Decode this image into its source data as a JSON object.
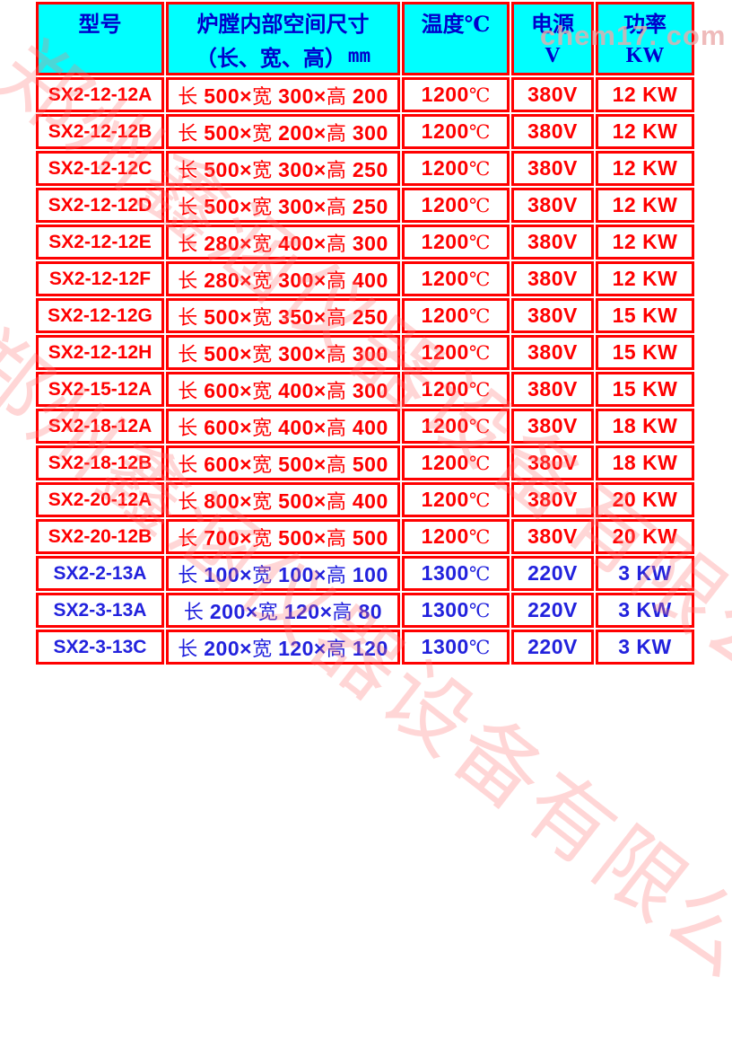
{
  "colors": {
    "header-cyan": "#00ffff",
    "border-red": "#ff0000",
    "text-red": "#ff0000",
    "header-blue": "#0000cc",
    "data-blue": "#2222dd"
  },
  "watermarks": {
    "site": "chem17. com",
    "company": "郑州鑫涵仪器设备有限公司"
  },
  "table": {
    "headers": {
      "model": {
        "line1": "型号",
        "line2": ""
      },
      "size": {
        "line1": "炉膛内部空间尺寸",
        "line2_cjk": "（长、宽、高）",
        "line2_unit": "mm"
      },
      "temp": {
        "line1": "温度℃",
        "line2": ""
      },
      "volt": {
        "line1": "电源",
        "line2": "V"
      },
      "power": {
        "line1": "功率",
        "line2": "KW"
      }
    },
    "rows": [
      {
        "model": "SX2-12-12A",
        "dims": [
          [
            "长 ",
            "500×"
          ],
          [
            "宽 ",
            "300×"
          ],
          [
            "高 ",
            "200"
          ]
        ],
        "temp": "1200",
        "unit": "℃",
        "volt": "380V",
        "power": "12 KW",
        "theme": "red"
      },
      {
        "model": "SX2-12-12B",
        "dims": [
          [
            "长 ",
            "500×"
          ],
          [
            "宽 ",
            "200×"
          ],
          [
            "高 ",
            "300"
          ]
        ],
        "temp": "1200",
        "unit": "℃",
        "volt": "380V",
        "power": "12 KW",
        "theme": "red"
      },
      {
        "model": "SX2-12-12C",
        "dims": [
          [
            "长 ",
            "500×"
          ],
          [
            "宽 ",
            "300×"
          ],
          [
            "高 ",
            "250"
          ]
        ],
        "temp": "1200",
        "unit": "℃",
        "volt": "380V",
        "power": "12 KW",
        "theme": "red"
      },
      {
        "model": "SX2-12-12D",
        "dims": [
          [
            "长 ",
            "500×"
          ],
          [
            "宽 ",
            "300×"
          ],
          [
            "高 ",
            "250"
          ]
        ],
        "temp": "1200",
        "unit": "℃",
        "volt": "380V",
        "power": "12 KW",
        "theme": "red"
      },
      {
        "model": "SX2-12-12E",
        "dims": [
          [
            "长 ",
            "280×"
          ],
          [
            "宽 ",
            "400×"
          ],
          [
            "高 ",
            "300"
          ]
        ],
        "temp": "1200",
        "unit": "℃",
        "volt": "380V",
        "power": "12 KW",
        "theme": "red"
      },
      {
        "model": "SX2-12-12F",
        "dims": [
          [
            "长 ",
            "280×"
          ],
          [
            "宽 ",
            "300×"
          ],
          [
            "高 ",
            "400"
          ]
        ],
        "temp": "1200",
        "unit": "℃",
        "volt": "380V",
        "power": "12 KW",
        "theme": "red"
      },
      {
        "model": "SX2-12-12G",
        "dims": [
          [
            "长 ",
            "500×"
          ],
          [
            "宽 ",
            "350×"
          ],
          [
            "高 ",
            "250"
          ]
        ],
        "temp": "1200",
        "unit": "℃",
        "volt": "380V",
        "power": "15 KW",
        "theme": "red"
      },
      {
        "model": "SX2-12-12H",
        "dims": [
          [
            "长 ",
            "500×"
          ],
          [
            "宽 ",
            "300×"
          ],
          [
            "高 ",
            "300"
          ]
        ],
        "temp": "1200",
        "unit": "℃",
        "volt": "380V",
        "power": "15 KW",
        "theme": "red"
      },
      {
        "model": "SX2-15-12A",
        "dims": [
          [
            "长 ",
            "600×"
          ],
          [
            "宽 ",
            "400×"
          ],
          [
            "高 ",
            "300"
          ]
        ],
        "temp": "1200",
        "unit": "℃",
        "volt": "380V",
        "power": "15 KW",
        "theme": "red"
      },
      {
        "model": "SX2-18-12A",
        "dims": [
          [
            "长 ",
            "600×"
          ],
          [
            "宽 ",
            "400×"
          ],
          [
            "高 ",
            "400"
          ]
        ],
        "temp": "1200",
        "unit": "℃",
        "volt": "380V",
        "power": "18 KW",
        "theme": "red"
      },
      {
        "model": "SX2-18-12B",
        "dims": [
          [
            "长 ",
            "600×"
          ],
          [
            "宽 ",
            "500×"
          ],
          [
            "高 ",
            "500"
          ]
        ],
        "temp": "1200",
        "unit": "℃",
        "volt": "380V",
        "power": "18 KW",
        "theme": "red"
      },
      {
        "model": "SX2-20-12A",
        "dims": [
          [
            "长 ",
            "800×"
          ],
          [
            "宽 ",
            "500×"
          ],
          [
            "高 ",
            "400"
          ]
        ],
        "temp": "1200",
        "unit": "℃",
        "volt": "380V",
        "power": "20 KW",
        "theme": "red"
      },
      {
        "model": "SX2-20-12B",
        "dims": [
          [
            "长 ",
            "700×"
          ],
          [
            "宽 ",
            "500×"
          ],
          [
            "高 ",
            "500"
          ]
        ],
        "temp": "1200",
        "unit": "℃",
        "volt": "380V",
        "power": "20 KW",
        "theme": "red"
      },
      {
        "model": "SX2-2-13A",
        "dims": [
          [
            "长 ",
            "100×"
          ],
          [
            "宽 ",
            "100×"
          ],
          [
            "高 ",
            "100"
          ]
        ],
        "temp": "1300",
        "unit": "℃",
        "volt": "220V",
        "power": "3 KW",
        "theme": "blue"
      },
      {
        "model": "SX2-3-13A",
        "dims": [
          [
            "长 ",
            "200×"
          ],
          [
            "宽 ",
            "120×"
          ],
          [
            "高 ",
            "80"
          ]
        ],
        "temp": "1300",
        "unit": "℃",
        "volt": "220V",
        "power": "3 KW",
        "theme": "blue"
      },
      {
        "model": "SX2-3-13C",
        "dims": [
          [
            "长 ",
            "200×"
          ],
          [
            "宽 ",
            "120×"
          ],
          [
            "高 ",
            "120"
          ]
        ],
        "temp": "1300",
        "unit": "℃",
        "volt": "220V",
        "power": "3 KW",
        "theme": "blue"
      }
    ]
  },
  "chart_data": {
    "type": "table",
    "columns": [
      "型号",
      "炉膛内部空间尺寸（长、宽、高）mm",
      "温度℃",
      "电源V",
      "功率KW"
    ],
    "rows": [
      [
        "SX2-12-12A",
        "长 500×宽 300×高 200",
        "1200℃",
        "380V",
        "12 KW"
      ],
      [
        "SX2-12-12B",
        "长 500×宽 200×高 300",
        "1200℃",
        "380V",
        "12 KW"
      ],
      [
        "SX2-12-12C",
        "长 500×宽 300×高 250",
        "1200℃",
        "380V",
        "12 KW"
      ],
      [
        "SX2-12-12D",
        "长 500×宽 300×高 250",
        "1200℃",
        "380V",
        "12 KW"
      ],
      [
        "SX2-12-12E",
        "长 280×宽 400×高 300",
        "1200℃",
        "380V",
        "12 KW"
      ],
      [
        "SX2-12-12F",
        "长 280×宽 300×高 400",
        "1200℃",
        "380V",
        "12 KW"
      ],
      [
        "SX2-12-12G",
        "长 500×宽 350×高 250",
        "1200℃",
        "380V",
        "15 KW"
      ],
      [
        "SX2-12-12H",
        "长 500×宽 300×高 300",
        "1200℃",
        "380V",
        "15 KW"
      ],
      [
        "SX2-15-12A",
        "长 600×宽 400×高 300",
        "1200℃",
        "380V",
        "15 KW"
      ],
      [
        "SX2-18-12A",
        "长 600×宽 400×高 400",
        "1200℃",
        "380V",
        "18 KW"
      ],
      [
        "SX2-18-12B",
        "长 600×宽 500×高 500",
        "1200℃",
        "380V",
        "18 KW"
      ],
      [
        "SX2-20-12A",
        "长 800×宽 500×高 400",
        "1200℃",
        "380V",
        "20 KW"
      ],
      [
        "SX2-20-12B",
        "长 700×宽 500×高 500",
        "1200℃",
        "380V",
        "20 KW"
      ],
      [
        "SX2-2-13A",
        "长 100×宽 100×高 100",
        "1300℃",
        "220V",
        "3 KW"
      ],
      [
        "SX2-3-13A",
        "长 200×宽 120×高 80",
        "1300℃",
        "220V",
        "3 KW"
      ],
      [
        "SX2-3-13C",
        "长 200×宽 120×高 120",
        "1300℃",
        "220V",
        "3 KW"
      ]
    ]
  }
}
